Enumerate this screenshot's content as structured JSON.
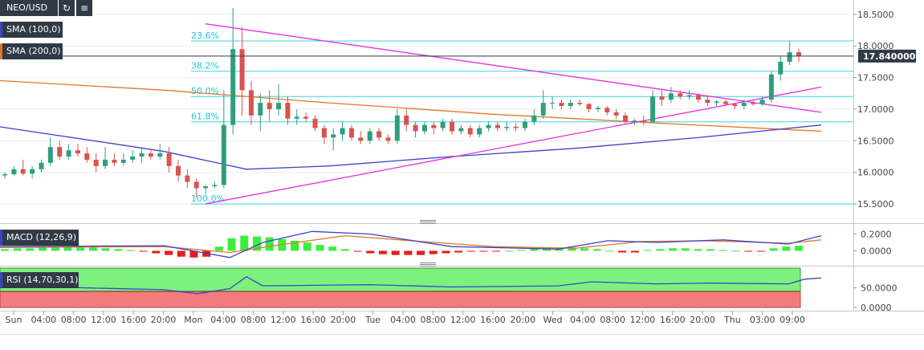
{
  "header": {
    "symbol": "NEO/USD",
    "refresh_icon": "refresh-icon",
    "chart_icon": "bar-chart-icon",
    "indicators": [
      {
        "label": "SMA (100,0)",
        "color": "#3b44c8"
      },
      {
        "label": "SMA (200,0)",
        "color": "#e0782a"
      }
    ]
  },
  "chart_data": [
    {
      "type": "candlestick",
      "time_labels": [
        "Sun",
        "04:00",
        "08:00",
        "12:00",
        "16:00",
        "20:00",
        "Mon",
        "04:00",
        "08:00",
        "12:00",
        "16:00",
        "20:00",
        "Tue",
        "04:00",
        "08:00",
        "12:00",
        "16:00",
        "20:00",
        "Wed",
        "04:00",
        "08:00",
        "12:00",
        "16:00",
        "20:00",
        "Thu",
        "03:00",
        "09:00"
      ],
      "y_ticks": [
        "18.5000",
        "18.0000",
        "17.5000",
        "17.0000",
        "16.5000",
        "16.0000",
        "15.5000"
      ],
      "ylim": [
        15.45,
        18.6
      ],
      "current_price": "17.840000",
      "fibonacci": [
        {
          "label": "23.6%",
          "value": 18.08
        },
        {
          "label": "38.2%",
          "value": 17.6
        },
        {
          "label": "50.0%",
          "value": 17.2
        },
        {
          "label": "61.8%",
          "value": 16.8
        },
        {
          "label": "100.0%",
          "value": 15.5
        }
      ],
      "candles": [
        [
          15.95,
          16.0,
          15.9,
          15.97
        ],
        [
          15.97,
          16.1,
          15.95,
          16.05
        ],
        [
          16.05,
          16.2,
          15.95,
          15.98
        ],
        [
          15.98,
          16.1,
          15.9,
          16.05
        ],
        [
          16.05,
          16.2,
          16.0,
          16.15
        ],
        [
          16.15,
          16.55,
          16.1,
          16.4
        ],
        [
          16.4,
          16.5,
          16.2,
          16.25
        ],
        [
          16.25,
          16.45,
          16.2,
          16.35
        ],
        [
          16.35,
          16.45,
          16.25,
          16.3
        ],
        [
          16.3,
          16.4,
          16.15,
          16.2
        ],
        [
          16.2,
          16.3,
          16.0,
          16.1
        ],
        [
          16.1,
          16.4,
          16.05,
          16.2
        ],
        [
          16.2,
          16.3,
          16.1,
          16.15
        ],
        [
          16.15,
          16.3,
          16.1,
          16.2
        ],
        [
          16.2,
          16.35,
          16.15,
          16.25
        ],
        [
          16.25,
          16.4,
          16.15,
          16.3
        ],
        [
          16.3,
          16.35,
          16.2,
          16.25
        ],
        [
          16.25,
          16.45,
          16.2,
          16.3
        ],
        [
          16.3,
          16.4,
          16.0,
          16.1
        ],
        [
          16.1,
          16.2,
          15.85,
          15.95
        ],
        [
          15.95,
          16.05,
          15.75,
          15.85
        ],
        [
          15.85,
          15.9,
          15.6,
          15.75
        ],
        [
          15.75,
          15.8,
          15.65,
          15.78
        ],
        [
          15.78,
          15.85,
          15.75,
          15.8
        ],
        [
          15.8,
          17.3,
          15.75,
          16.75
        ],
        [
          16.75,
          18.6,
          16.6,
          17.95
        ],
        [
          17.95,
          18.3,
          16.9,
          17.3
        ],
        [
          17.3,
          17.45,
          16.75,
          16.9
        ],
        [
          16.9,
          17.25,
          16.65,
          17.1
        ],
        [
          17.1,
          17.3,
          16.8,
          17.0
        ],
        [
          17.0,
          17.4,
          16.9,
          17.1
        ],
        [
          17.1,
          17.2,
          16.75,
          16.85
        ],
        [
          16.85,
          17.0,
          16.75,
          16.88
        ],
        [
          16.88,
          16.95,
          16.8,
          16.85
        ],
        [
          16.85,
          16.9,
          16.65,
          16.7
        ],
        [
          16.7,
          16.75,
          16.45,
          16.55
        ],
        [
          16.55,
          16.7,
          16.35,
          16.6
        ],
        [
          16.6,
          16.8,
          16.5,
          16.7
        ],
        [
          16.7,
          16.75,
          16.5,
          16.55
        ],
        [
          16.55,
          16.65,
          16.45,
          16.5
        ],
        [
          16.5,
          16.7,
          16.45,
          16.65
        ],
        [
          16.65,
          16.7,
          16.5,
          16.55
        ],
        [
          16.55,
          16.6,
          16.45,
          16.5
        ],
        [
          16.5,
          17.0,
          16.45,
          16.9
        ],
        [
          16.9,
          17.0,
          16.65,
          16.75
        ],
        [
          16.75,
          16.8,
          16.55,
          16.65
        ],
        [
          16.65,
          16.8,
          16.6,
          16.75
        ],
        [
          16.75,
          16.8,
          16.6,
          16.7
        ],
        [
          16.7,
          16.85,
          16.65,
          16.8
        ],
        [
          16.8,
          16.85,
          16.6,
          16.65
        ],
        [
          16.65,
          16.75,
          16.6,
          16.7
        ],
        [
          16.7,
          16.75,
          16.55,
          16.6
        ],
        [
          16.6,
          16.75,
          16.55,
          16.7
        ],
        [
          16.7,
          16.8,
          16.65,
          16.75
        ],
        [
          16.75,
          16.8,
          16.65,
          16.7
        ],
        [
          16.7,
          16.8,
          16.65,
          16.72
        ],
        [
          16.72,
          16.78,
          16.65,
          16.7
        ],
        [
          16.7,
          16.85,
          16.65,
          16.8
        ],
        [
          16.8,
          17.0,
          16.75,
          16.9
        ],
        [
          16.9,
          17.3,
          16.85,
          17.1
        ],
        [
          17.1,
          17.2,
          17.0,
          17.1
        ],
        [
          17.1,
          17.15,
          17.0,
          17.05
        ],
        [
          17.05,
          17.15,
          17.0,
          17.1
        ],
        [
          17.1,
          17.15,
          17.05,
          17.08
        ],
        [
          17.08,
          17.1,
          16.95,
          17.0
        ],
        [
          17.0,
          17.05,
          16.95,
          17.02
        ],
        [
          17.02,
          17.05,
          16.9,
          16.95
        ],
        [
          16.95,
          17.0,
          16.85,
          16.9
        ],
        [
          16.9,
          16.95,
          16.75,
          16.8
        ],
        [
          16.8,
          16.85,
          16.75,
          16.82
        ],
        [
          16.82,
          16.9,
          16.75,
          16.8
        ],
        [
          16.8,
          17.3,
          16.78,
          17.2
        ],
        [
          17.2,
          17.3,
          17.05,
          17.15
        ],
        [
          17.15,
          17.35,
          17.1,
          17.25
        ],
        [
          17.25,
          17.3,
          17.15,
          17.2
        ],
        [
          17.2,
          17.3,
          17.15,
          17.22
        ],
        [
          17.22,
          17.25,
          17.1,
          17.15
        ],
        [
          17.15,
          17.2,
          17.05,
          17.1
        ],
        [
          17.1,
          17.15,
          17.05,
          17.12
        ],
        [
          17.12,
          17.15,
          17.05,
          17.08
        ],
        [
          17.08,
          17.1,
          17.0,
          17.05
        ],
        [
          17.05,
          17.15,
          17.0,
          17.1
        ],
        [
          17.1,
          17.15,
          17.05,
          17.08
        ],
        [
          17.08,
          17.2,
          17.05,
          17.15
        ],
        [
          17.15,
          17.6,
          17.1,
          17.55
        ],
        [
          17.55,
          17.85,
          17.45,
          17.75
        ],
        [
          17.75,
          18.08,
          17.7,
          17.9
        ],
        [
          17.9,
          17.95,
          17.75,
          17.84
        ]
      ],
      "sma100": [
        [
          0,
          16.72
        ],
        [
          0.14,
          16.45
        ],
        [
          0.2,
          16.33
        ],
        [
          0.3,
          16.05
        ],
        [
          0.4,
          16.1
        ],
        [
          0.55,
          16.25
        ],
        [
          0.7,
          16.38
        ],
        [
          0.85,
          16.55
        ],
        [
          1.0,
          16.75
        ]
      ],
      "sma200": [
        [
          0,
          17.45
        ],
        [
          0.2,
          17.3
        ],
        [
          0.4,
          17.1
        ],
        [
          0.6,
          16.92
        ],
        [
          0.8,
          16.78
        ],
        [
          1.0,
          16.65
        ]
      ],
      "trendlines": [
        {
          "from": [
            0.25,
            18.35
          ],
          "to": [
            1.0,
            16.95
          ]
        },
        {
          "from": [
            0.25,
            15.5
          ],
          "to": [
            1.0,
            17.35
          ]
        }
      ]
    },
    {
      "type": "macd",
      "label": "MACD (12,26,9)",
      "y_ticks": [
        "0.2000",
        "0.0000"
      ],
      "ylim": [
        -0.12,
        0.3
      ],
      "histogram": [
        0.02,
        0.03,
        0.03,
        0.04,
        0.05,
        0.05,
        0.05,
        0.04,
        0.03,
        0.02,
        0.01,
        -0.01,
        -0.03,
        -0.05,
        -0.07,
        -0.08,
        -0.07,
        0.05,
        0.15,
        0.18,
        0.17,
        0.16,
        0.14,
        0.12,
        0.1,
        0.07,
        0.05,
        0.02,
        -0.01,
        -0.03,
        -0.04,
        -0.05,
        -0.05,
        -0.05,
        -0.04,
        -0.03,
        -0.02,
        -0.01,
        -0.01,
        -0.01,
        0.0,
        0.01,
        0.03,
        0.04,
        0.04,
        0.04,
        0.03,
        0.02,
        0.0,
        -0.02,
        -0.02,
        0.01,
        0.02,
        0.03,
        0.03,
        0.02,
        0.02,
        0.01,
        0.0,
        -0.01,
        -0.01,
        0.03,
        0.05,
        0.06
      ],
      "macd_line": [
        [
          0,
          0.05
        ],
        [
          0.2,
          0.06
        ],
        [
          0.28,
          -0.08
        ],
        [
          0.32,
          0.1
        ],
        [
          0.38,
          0.23
        ],
        [
          0.45,
          0.2
        ],
        [
          0.55,
          0.05
        ],
        [
          0.68,
          0.02
        ],
        [
          0.74,
          0.12
        ],
        [
          0.8,
          0.1
        ],
        [
          0.88,
          0.13
        ],
        [
          0.96,
          0.08
        ],
        [
          1.0,
          0.18
        ]
      ],
      "signal_line": [
        [
          0,
          0.04
        ],
        [
          0.2,
          0.05
        ],
        [
          0.28,
          -0.02
        ],
        [
          0.34,
          0.07
        ],
        [
          0.42,
          0.18
        ],
        [
          0.5,
          0.12
        ],
        [
          0.6,
          0.05
        ],
        [
          0.7,
          0.03
        ],
        [
          0.78,
          0.11
        ],
        [
          0.86,
          0.12
        ],
        [
          0.96,
          0.09
        ],
        [
          1.0,
          0.13
        ]
      ]
    },
    {
      "type": "rsi",
      "label": "RSI (14,70,30,1)",
      "y_ticks": [
        "50.0000",
        "0.0000"
      ],
      "ylim": [
        0,
        100
      ],
      "overbought": 70,
      "oversold": 30,
      "values": [
        [
          0,
          55
        ],
        [
          0.1,
          50
        ],
        [
          0.2,
          45
        ],
        [
          0.24,
          35
        ],
        [
          0.28,
          48
        ],
        [
          0.3,
          78
        ],
        [
          0.32,
          55
        ],
        [
          0.45,
          58
        ],
        [
          0.55,
          52
        ],
        [
          0.68,
          55
        ],
        [
          0.72,
          65
        ],
        [
          0.8,
          60
        ],
        [
          0.86,
          62
        ],
        [
          0.96,
          60
        ],
        [
          0.98,
          72
        ],
        [
          1.0,
          75
        ]
      ]
    }
  ]
}
